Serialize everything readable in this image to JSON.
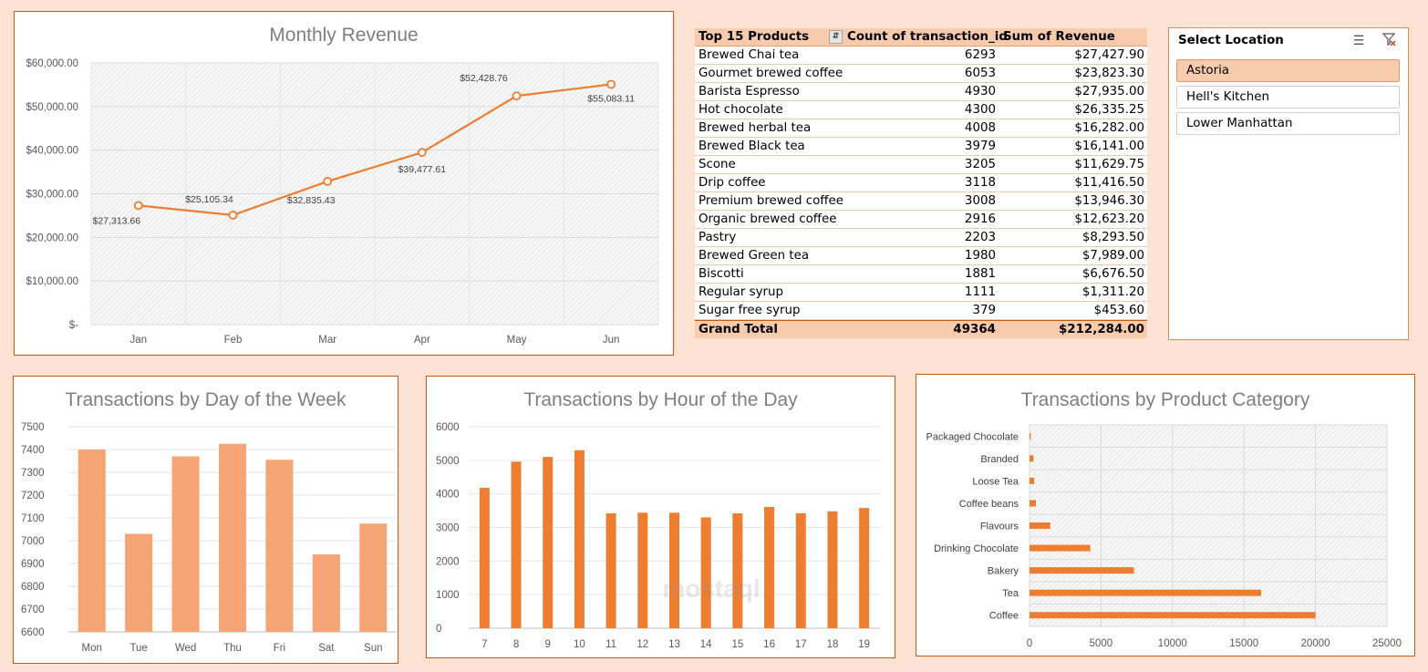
{
  "colors": {
    "accent": "#ed7d31",
    "bar_light": "#f4a573",
    "header_fill": "#f8cbad",
    "selected_fill": "#f8cbad",
    "panel_border": "#c55a11",
    "background": "#fde3d3"
  },
  "line_chart": {
    "title": "Monthly Revenue",
    "chart_data": {
      "type": "line",
      "categories": [
        "Jan",
        "Feb",
        "Mar",
        "Apr",
        "May",
        "Jun"
      ],
      "values": [
        27313.66,
        25105.34,
        32835.43,
        39477.61,
        52428.76,
        55083.11
      ],
      "data_labels": [
        "$27,313.66",
        "$25,105.34",
        "$32,835.43",
        "$39,477.61",
        "$52,428.76",
        "$55,083.11"
      ],
      "yticks": [
        "$-",
        "$10,000.00",
        "$20,000.00",
        "$30,000.00",
        "$40,000.00",
        "$50,000.00",
        "$60,000.00"
      ],
      "ylim": [
        0,
        60000
      ],
      "grid": true
    }
  },
  "pivot": {
    "headers": [
      "Top 15 Products",
      "Count of transaction_id",
      "Sum of Revenue"
    ],
    "filter_icon": "filter-sort-icon",
    "rows": [
      [
        "Brewed Chai tea",
        "6293",
        "$27,427.90"
      ],
      [
        "Gourmet brewed coffee",
        "6053",
        "$23,823.30"
      ],
      [
        "Barista Espresso",
        "4930",
        "$27,935.00"
      ],
      [
        "Hot chocolate",
        "4300",
        "$26,335.25"
      ],
      [
        "Brewed herbal tea",
        "4008",
        "$16,282.00"
      ],
      [
        "Brewed Black tea",
        "3979",
        "$16,141.00"
      ],
      [
        "Scone",
        "3205",
        "$11,629.75"
      ],
      [
        "Drip coffee",
        "3118",
        "$11,416.50"
      ],
      [
        "Premium brewed coffee",
        "3008",
        "$13,946.30"
      ],
      [
        "Organic brewed coffee",
        "2916",
        "$12,623.20"
      ],
      [
        "Pastry",
        "2203",
        "$8,293.50"
      ],
      [
        "Brewed Green tea",
        "1980",
        "$7,989.00"
      ],
      [
        "Biscotti",
        "1881",
        "$6,676.50"
      ],
      [
        "Regular syrup",
        "1111",
        "$1,311.20"
      ],
      [
        "Sugar free syrup",
        "379",
        "$453.60"
      ]
    ],
    "total": [
      "Grand Total",
      "49364",
      "$212,284.00"
    ]
  },
  "slicer": {
    "title": "Select Location",
    "items": [
      "Astoria",
      "Hell's Kitchen",
      "Lower Manhattan"
    ],
    "selected": "Astoria",
    "icons": [
      "multi-select-icon",
      "clear-filter-icon"
    ]
  },
  "day_chart": {
    "title": "Transactions by Day of the Week",
    "chart_data": {
      "type": "bar",
      "categories": [
        "Mon",
        "Tue",
        "Wed",
        "Thu",
        "Fri",
        "Sat",
        "Sun"
      ],
      "values": [
        7400,
        7030,
        7370,
        7425,
        7355,
        6940,
        7075
      ],
      "yticks": [
        "6600",
        "6700",
        "6800",
        "6900",
        "7000",
        "7100",
        "7200",
        "7300",
        "7400",
        "7500"
      ],
      "ylim": [
        6600,
        7500
      ],
      "grid": true
    }
  },
  "hour_chart": {
    "title": "Transactions by Hour of the Day",
    "chart_data": {
      "type": "bar",
      "categories": [
        "7",
        "8",
        "9",
        "10",
        "11",
        "12",
        "13",
        "14",
        "15",
        "16",
        "17",
        "18",
        "19"
      ],
      "values": [
        4180,
        4960,
        5100,
        5300,
        3420,
        3440,
        3440,
        3300,
        3420,
        3610,
        3420,
        3480,
        3580
      ],
      "yticks": [
        "0",
        "1000",
        "2000",
        "3000",
        "4000",
        "5000",
        "6000"
      ],
      "ylim": [
        0,
        6000
      ],
      "grid": true
    }
  },
  "category_chart": {
    "title": "Transactions by Product Category",
    "chart_data": {
      "type": "bar",
      "orientation": "horizontal",
      "categories": [
        "Packaged Chocolate",
        "Branded",
        "Loose Tea",
        "Coffee beans",
        "Flavours",
        "Drinking Chocolate",
        "Bakery",
        "Tea",
        "Coffee"
      ],
      "values": [
        90,
        280,
        330,
        450,
        1450,
        4250,
        7300,
        16200,
        20000
      ],
      "xticks": [
        "0",
        "5000",
        "10000",
        "15000",
        "20000",
        "25000"
      ],
      "xlim": [
        0,
        25000
      ],
      "grid": true
    }
  }
}
